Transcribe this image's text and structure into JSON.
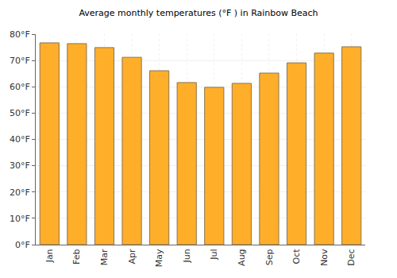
{
  "chart_data": {
    "type": "bar",
    "title": "Average monthly temperatures (°F ) in Rainbow Beach",
    "categories": [
      "Jan",
      "Feb",
      "Mar",
      "Apr",
      "May",
      "Jun",
      "Jul",
      "Aug",
      "Sep",
      "Oct",
      "Nov",
      "Dec"
    ],
    "values": [
      76.7,
      76.4,
      74.9,
      71.2,
      66.1,
      61.6,
      59.8,
      61.3,
      65.2,
      69.1,
      72.8,
      75.2
    ],
    "color": "#ffae2a",
    "ylim": [
      0,
      80
    ],
    "yticks": [
      {
        "value": 0,
        "label": "0°F"
      },
      {
        "value": 10,
        "label": "10°F"
      },
      {
        "value": 20,
        "label": "20°F"
      },
      {
        "value": 30,
        "label": "30°F"
      },
      {
        "value": 40,
        "label": "40°F"
      },
      {
        "value": 50,
        "label": "50°F"
      },
      {
        "value": 60,
        "label": "60°F"
      },
      {
        "value": 70,
        "label": "70°F"
      },
      {
        "value": 80,
        "label": "80°F"
      }
    ],
    "grid": true
  }
}
